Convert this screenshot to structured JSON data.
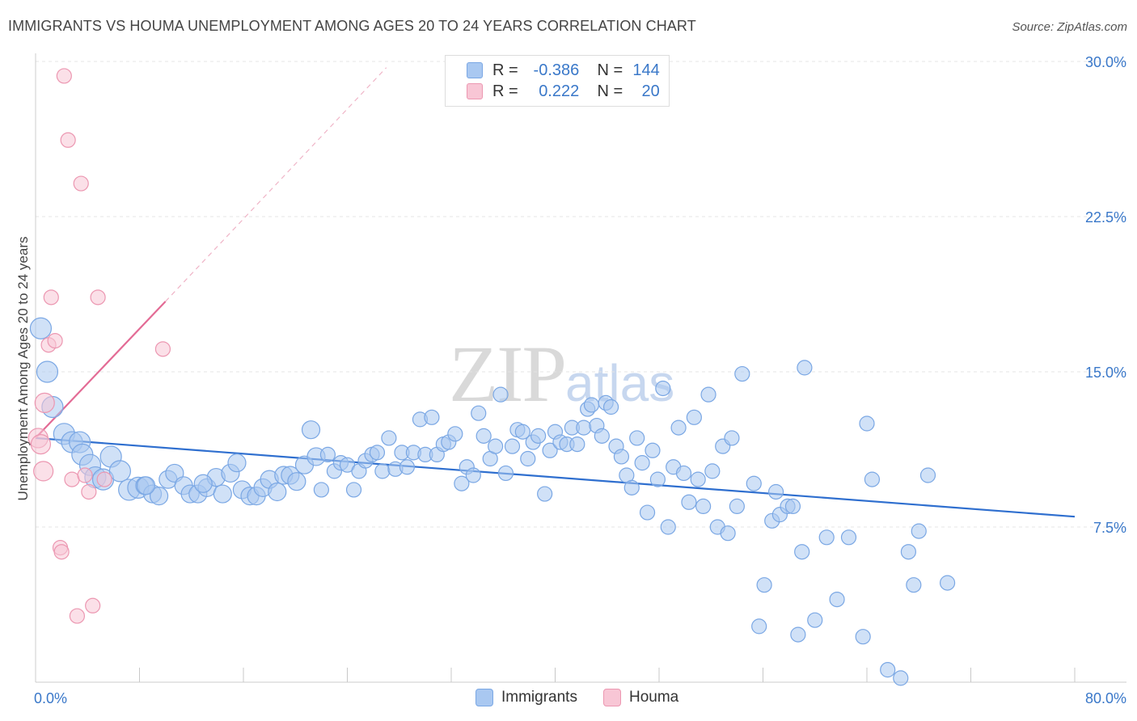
{
  "header": {
    "title": "IMMIGRANTS VS HOUMA UNEMPLOYMENT AMONG AGES 20 TO 24 YEARS CORRELATION CHART",
    "source": "Source: ZipAtlas.com"
  },
  "watermark": {
    "zip": "ZIP",
    "atlas": "atlas"
  },
  "colors": {
    "immigrants_fill": "#a9c8f1",
    "immigrants_stroke": "#7aa7e4",
    "immigrants_line": "#2f6fcf",
    "houma_fill": "#f8c6d5",
    "houma_stroke": "#ec97b1",
    "houma_line": "#e36b95",
    "tick_label": "#3a78c9",
    "grid": "#e4e4e4"
  },
  "legend": {
    "rows": [
      {
        "series": "Immigrants",
        "r_label": "R =",
        "r_value": "-0.386",
        "n_label": "N =",
        "n_value": "144"
      },
      {
        "series": "Houma",
        "r_label": "R =",
        "r_value": "0.222",
        "n_label": "N =",
        "n_value": "20"
      }
    ]
  },
  "chart_data": {
    "type": "scatter",
    "title": "IMMIGRANTS VS HOUMA UNEMPLOYMENT AMONG AGES 20 TO 24 YEARS CORRELATION CHART",
    "xlabel": "",
    "ylabel": "Unemployment Among Ages 20 to 24 years",
    "xlim": [
      0,
      80
    ],
    "ylim": [
      0,
      30
    ],
    "x_tick_labels": [
      "0.0%",
      "80.0%"
    ],
    "y_ticks": [
      7.5,
      15.0,
      22.5,
      30.0
    ],
    "y_tick_labels": [
      "7.5%",
      "15.0%",
      "22.5%",
      "30.0%"
    ],
    "grid": true,
    "legend_position": "top-center",
    "series": [
      {
        "name": "Immigrants",
        "points": [
          [
            0.4,
            17.1
          ],
          [
            0.9,
            15.0
          ],
          [
            1.3,
            13.3
          ],
          [
            2.2,
            12.0
          ],
          [
            2.8,
            11.6
          ],
          [
            3.4,
            11.6
          ],
          [
            3.6,
            11.0
          ],
          [
            4.2,
            10.5
          ],
          [
            4.6,
            9.9
          ],
          [
            5.2,
            9.8
          ],
          [
            5.8,
            10.9
          ],
          [
            6.5,
            10.2
          ],
          [
            7.2,
            9.3
          ],
          [
            7.9,
            9.4
          ],
          [
            8.4,
            9.5
          ],
          [
            9.0,
            9.1
          ],
          [
            9.5,
            9.0
          ],
          [
            10.2,
            9.8
          ],
          [
            10.7,
            10.1
          ],
          [
            11.4,
            9.5
          ],
          [
            11.9,
            9.1
          ],
          [
            12.5,
            9.1
          ],
          [
            13.2,
            9.4
          ],
          [
            13.9,
            9.9
          ],
          [
            14.4,
            9.1
          ],
          [
            15.0,
            10.1
          ],
          [
            15.5,
            10.6
          ],
          [
            15.9,
            9.3
          ],
          [
            16.5,
            9.0
          ],
          [
            17.0,
            9.0
          ],
          [
            17.5,
            9.4
          ],
          [
            18.0,
            9.8
          ],
          [
            18.6,
            9.2
          ],
          [
            19.1,
            10.0
          ],
          [
            19.6,
            10.0
          ],
          [
            20.1,
            9.7
          ],
          [
            20.7,
            10.5
          ],
          [
            21.2,
            12.2
          ],
          [
            21.6,
            10.9
          ],
          [
            22.0,
            9.3
          ],
          [
            22.5,
            11.0
          ],
          [
            23.0,
            10.2
          ],
          [
            23.5,
            10.6
          ],
          [
            24.0,
            10.5
          ],
          [
            24.5,
            9.3
          ],
          [
            24.9,
            10.2
          ],
          [
            25.4,
            10.7
          ],
          [
            25.9,
            11.0
          ],
          [
            26.3,
            11.1
          ],
          [
            26.7,
            10.2
          ],
          [
            27.2,
            11.8
          ],
          [
            27.7,
            10.3
          ],
          [
            28.2,
            11.1
          ],
          [
            28.6,
            10.4
          ],
          [
            29.1,
            11.1
          ],
          [
            29.6,
            12.7
          ],
          [
            30.0,
            11.0
          ],
          [
            30.5,
            12.8
          ],
          [
            30.9,
            11.0
          ],
          [
            31.4,
            11.5
          ],
          [
            31.8,
            11.6
          ],
          [
            32.3,
            12.0
          ],
          [
            32.8,
            9.6
          ],
          [
            33.2,
            10.4
          ],
          [
            33.7,
            10.0
          ],
          [
            34.1,
            13.0
          ],
          [
            34.5,
            11.9
          ],
          [
            35.0,
            10.8
          ],
          [
            35.4,
            11.4
          ],
          [
            35.8,
            13.9
          ],
          [
            36.2,
            10.1
          ],
          [
            36.7,
            11.4
          ],
          [
            37.1,
            12.2
          ],
          [
            37.5,
            12.1
          ],
          [
            37.9,
            10.8
          ],
          [
            38.3,
            11.6
          ],
          [
            38.7,
            11.9
          ],
          [
            39.2,
            9.1
          ],
          [
            39.6,
            11.2
          ],
          [
            40.0,
            12.1
          ],
          [
            40.4,
            11.6
          ],
          [
            40.9,
            11.5
          ],
          [
            41.3,
            12.3
          ],
          [
            41.7,
            11.5
          ],
          [
            42.2,
            12.3
          ],
          [
            42.5,
            13.2
          ],
          [
            42.8,
            13.4
          ],
          [
            43.2,
            12.4
          ],
          [
            43.6,
            11.9
          ],
          [
            43.9,
            13.5
          ],
          [
            44.3,
            13.3
          ],
          [
            44.7,
            11.4
          ],
          [
            45.1,
            10.9
          ],
          [
            45.5,
            10.0
          ],
          [
            45.9,
            9.4
          ],
          [
            46.3,
            11.8
          ],
          [
            46.7,
            10.6
          ],
          [
            47.1,
            8.2
          ],
          [
            47.5,
            11.2
          ],
          [
            47.9,
            9.8
          ],
          [
            48.3,
            14.2
          ],
          [
            48.7,
            7.5
          ],
          [
            49.1,
            10.4
          ],
          [
            49.5,
            12.3
          ],
          [
            49.9,
            10.1
          ],
          [
            50.3,
            8.7
          ],
          [
            50.7,
            12.8
          ],
          [
            51.0,
            9.8
          ],
          [
            51.4,
            8.5
          ],
          [
            51.8,
            13.9
          ],
          [
            52.1,
            10.2
          ],
          [
            52.5,
            7.5
          ],
          [
            52.9,
            11.4
          ],
          [
            53.3,
            7.2
          ],
          [
            53.6,
            11.8
          ],
          [
            54.0,
            8.5
          ],
          [
            54.4,
            14.9
          ],
          [
            55.3,
            9.6
          ],
          [
            55.7,
            2.7
          ],
          [
            56.1,
            4.7
          ],
          [
            56.7,
            7.8
          ],
          [
            57.0,
            9.2
          ],
          [
            57.3,
            8.1
          ],
          [
            57.9,
            8.5
          ],
          [
            58.3,
            8.5
          ],
          [
            58.7,
            2.3
          ],
          [
            59.0,
            6.3
          ],
          [
            59.2,
            15.2
          ],
          [
            60.0,
            3.0
          ],
          [
            60.9,
            7.0
          ],
          [
            61.7,
            4.0
          ],
          [
            62.6,
            7.0
          ],
          [
            63.7,
            2.2
          ],
          [
            64.0,
            12.5
          ],
          [
            64.4,
            9.8
          ],
          [
            65.6,
            0.6
          ],
          [
            66.6,
            0.2
          ],
          [
            67.2,
            6.3
          ],
          [
            67.6,
            4.7
          ],
          [
            68.0,
            7.3
          ],
          [
            68.7,
            10.0
          ],
          [
            70.2,
            4.8
          ],
          [
            8.5,
            9.5
          ],
          [
            12.9,
            9.6
          ]
        ],
        "trendline": {
          "x": [
            0,
            80
          ],
          "y": [
            11.8,
            8.0
          ]
        }
      },
      {
        "name": "Houma",
        "points": [
          [
            0.2,
            11.8
          ],
          [
            0.4,
            11.5
          ],
          [
            0.6,
            10.2
          ],
          [
            0.7,
            13.5
          ],
          [
            1.0,
            16.3
          ],
          [
            1.2,
            18.6
          ],
          [
            1.5,
            16.5
          ],
          [
            1.9,
            6.5
          ],
          [
            2.0,
            6.3
          ],
          [
            2.2,
            29.3
          ],
          [
            2.5,
            26.2
          ],
          [
            2.8,
            9.8
          ],
          [
            3.2,
            3.2
          ],
          [
            3.5,
            24.1
          ],
          [
            3.8,
            10.0
          ],
          [
            4.1,
            9.2
          ],
          [
            4.4,
            3.7
          ],
          [
            4.8,
            18.6
          ],
          [
            5.3,
            9.8
          ],
          [
            9.8,
            16.1
          ]
        ],
        "trendline_solid": {
          "x": [
            0,
            10
          ],
          "y": [
            11.8,
            18.4
          ]
        },
        "trendline_dashed": {
          "x": [
            10,
            27
          ],
          "y": [
            18.4,
            29.7
          ]
        }
      }
    ]
  },
  "bottom_legend": {
    "items": [
      "Immigrants",
      "Houma"
    ]
  }
}
